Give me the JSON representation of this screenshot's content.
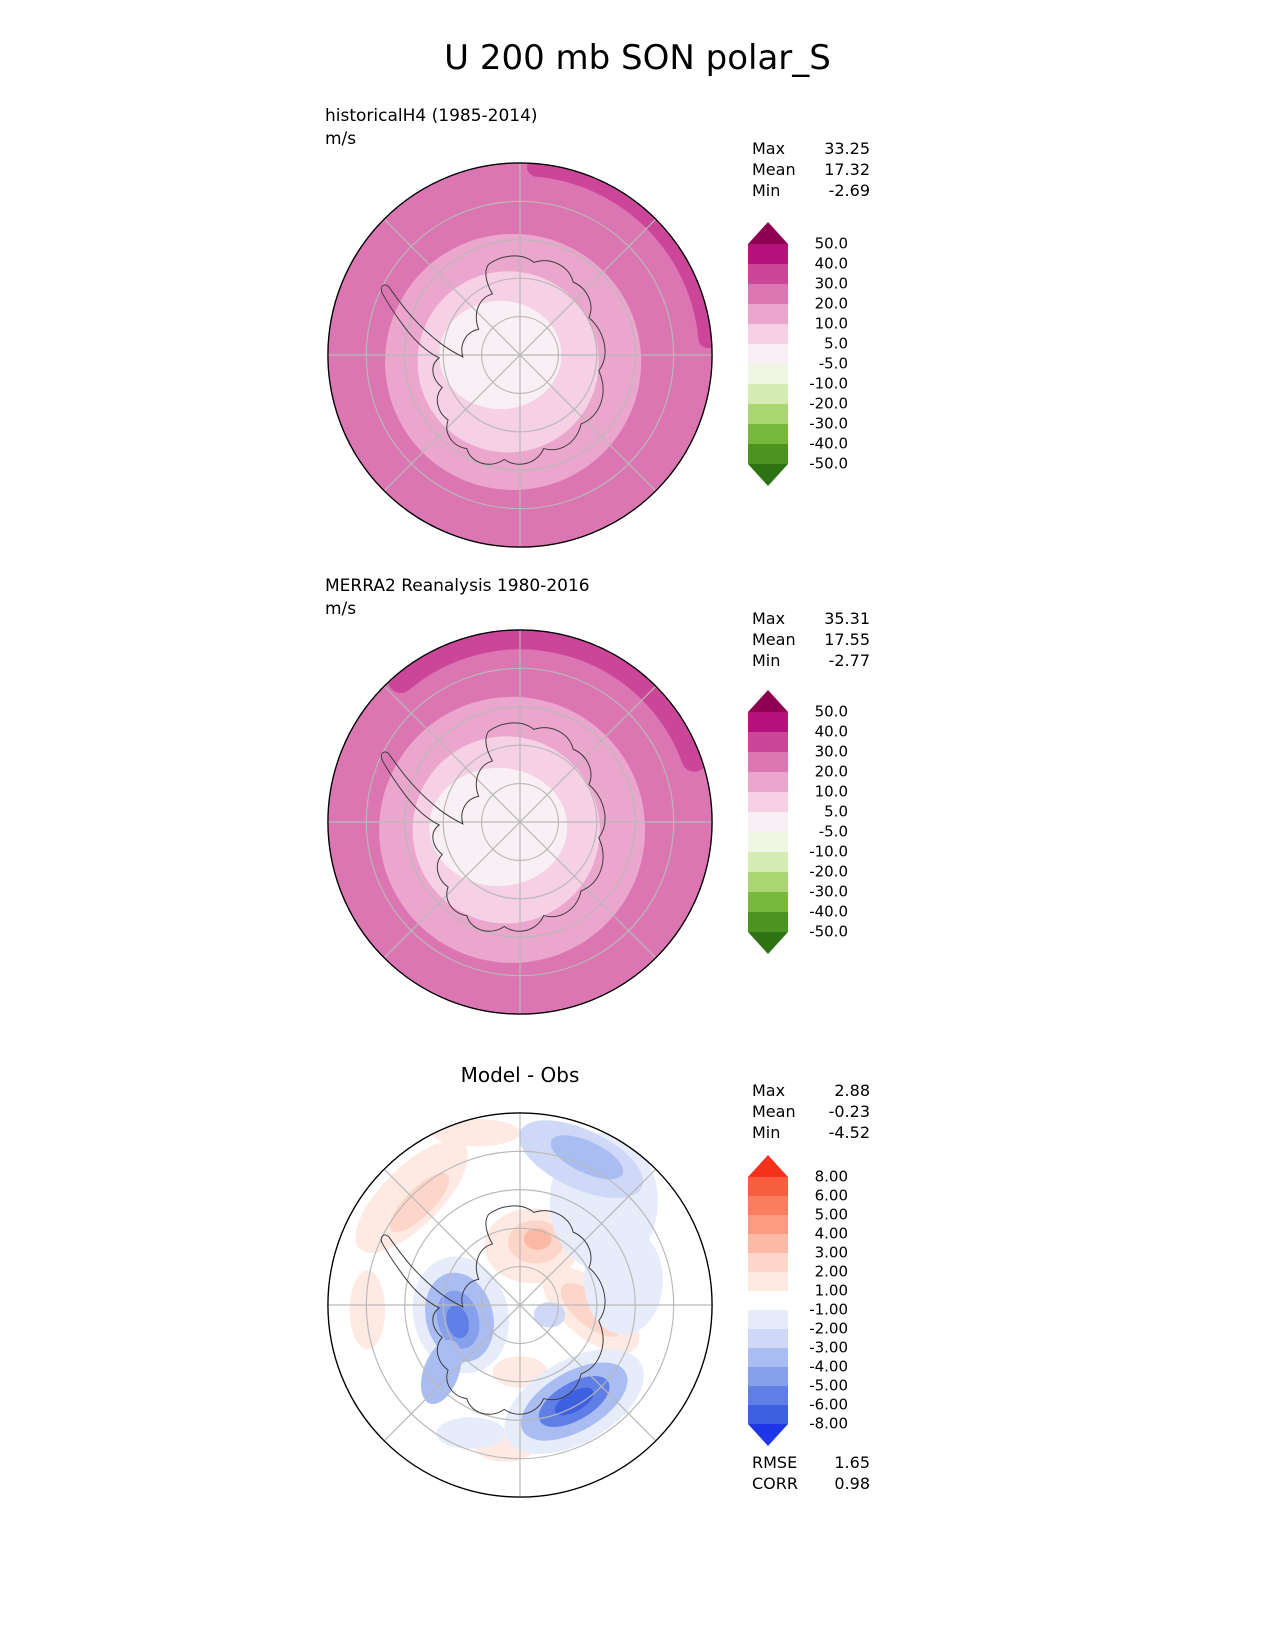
{
  "title": "U 200 mb SON polar_S",
  "panels": [
    {
      "label": "historicalH4 (1985-2014)",
      "units": "m/s",
      "stats": [
        [
          "Max",
          "33.25"
        ],
        [
          "Mean",
          "17.32"
        ],
        [
          "Min",
          "-2.69"
        ]
      ]
    },
    {
      "label": "MERRA2 Reanalysis 1980-2016",
      "units": "m/s",
      "stats": [
        [
          "Max",
          "35.31"
        ],
        [
          "Mean",
          "17.55"
        ],
        [
          "Min",
          "-2.77"
        ]
      ]
    },
    {
      "title": "Model - Obs",
      "stats": [
        [
          "Max",
          "2.88"
        ],
        [
          "Mean",
          "-0.23"
        ],
        [
          "Min",
          "-4.52"
        ]
      ],
      "extra_stats": [
        [
          "RMSE",
          "1.65"
        ],
        [
          "CORR",
          "0.98"
        ]
      ]
    }
  ],
  "colorbars": {
    "wind": {
      "levels": [
        "50.0",
        "40.0",
        "30.0",
        "20.0",
        "10.0",
        "5.0",
        "-5.0",
        "-10.0",
        "-20.0",
        "-30.0",
        "-40.0",
        "-50.0"
      ],
      "colors": [
        "#8e0152",
        "#b6107c",
        "#cb4699",
        "#dc76b3",
        "#eba6cd",
        "#f6d0e4",
        "#f8f0f4",
        "#eef5e2",
        "#d4ecb4",
        "#a9d671",
        "#77b73c",
        "#4c9420",
        "#2d7213"
      ]
    },
    "diff": {
      "levels": [
        "8.00",
        "6.00",
        "5.00",
        "4.00",
        "3.00",
        "2.00",
        "1.00",
        "-1.00",
        "-2.00",
        "-3.00",
        "-4.00",
        "-5.00",
        "-6.00",
        "-8.00"
      ],
      "colors": [
        "#f5311c",
        "#f75e3d",
        "#f97d5e",
        "#fb9c82",
        "#fcbaa6",
        "#fdd5c9",
        "#feeae3",
        "#ffffff",
        "#e7ecfb",
        "#cfd9f7",
        "#aabdf2",
        "#86a0ec",
        "#5f7fe6",
        "#3c60df",
        "#1f35e8"
      ]
    }
  },
  "map_style": {
    "graticule_color": "#b9b9b9",
    "coastline_color": "#3a3a3a",
    "rim_color": "#000000"
  },
  "chart_data": [
    {
      "type": "heatmap",
      "subtype": "filled-contour polar stereographic map (southern hemisphere)",
      "title": "historicalH4 (1985-2014)",
      "variable": "U",
      "level": "200 mb",
      "season": "SON",
      "region": "polar_S",
      "units": "m/s",
      "stats": {
        "max": 33.25,
        "mean": 17.32,
        "min": -2.69
      },
      "contour_levels": [
        -50,
        -40,
        -30,
        -20,
        -10,
        -5,
        5,
        10,
        20,
        30,
        40,
        50
      ],
      "palette": "magenta-pink to white to green diverging (PiYG reversed)",
      "legend_position": "right",
      "grid": "polar graticule on"
    },
    {
      "type": "heatmap",
      "subtype": "filled-contour polar stereographic map (southern hemisphere)",
      "title": "MERRA2 Reanalysis 1980-2016",
      "variable": "U",
      "level": "200 mb",
      "season": "SON",
      "region": "polar_S",
      "units": "m/s",
      "stats": {
        "max": 35.31,
        "mean": 17.55,
        "min": -2.77
      },
      "contour_levels": [
        -50,
        -40,
        -30,
        -20,
        -10,
        -5,
        5,
        10,
        20,
        30,
        40,
        50
      ],
      "palette": "magenta-pink to white to green diverging (PiYG reversed)",
      "legend_position": "right",
      "grid": "polar graticule on"
    },
    {
      "type": "heatmap",
      "subtype": "filled-contour polar stereographic difference map (southern hemisphere)",
      "title": "Model - Obs",
      "units": "m/s",
      "stats": {
        "max": 2.88,
        "mean": -0.23,
        "min": -4.52,
        "rmse": 1.65,
        "corr": 0.98
      },
      "contour_levels": [
        -8,
        -6,
        -5,
        -4,
        -3,
        -2,
        -1,
        1,
        2,
        3,
        4,
        5,
        6,
        8
      ],
      "palette": "blue-white-red diverging",
      "legend_position": "right",
      "grid": "polar graticule on"
    }
  ]
}
